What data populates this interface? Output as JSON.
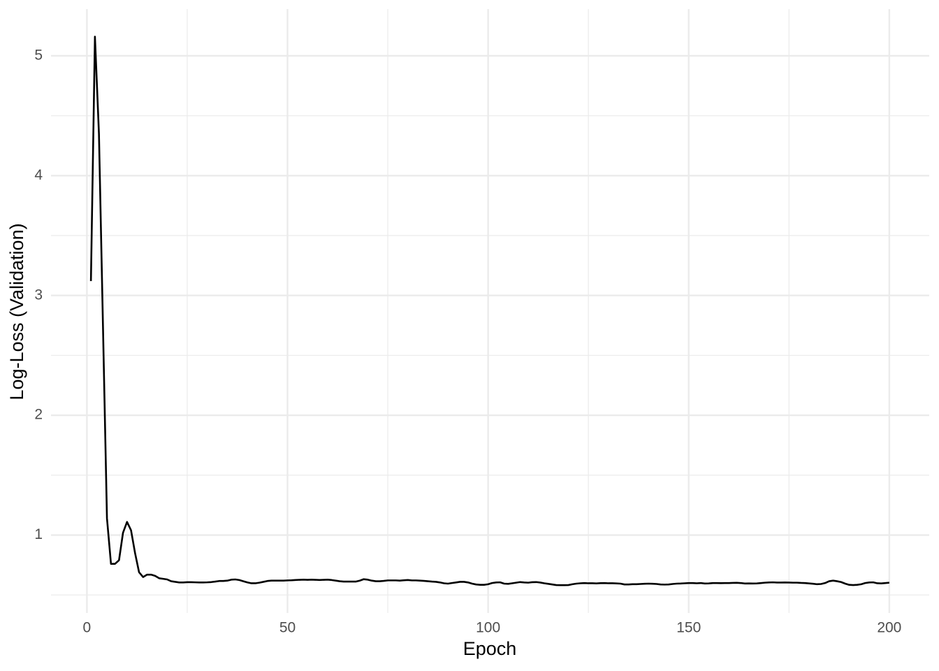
{
  "chart_data": {
    "type": "line",
    "x_label": "Epoch",
    "y_label": "Log-Loss (Validation)",
    "grid": true,
    "xlim": [
      -8.95,
      209.95
    ],
    "ylim": [
      0.35,
      5.39
    ],
    "xticks": [
      0,
      50,
      100,
      150,
      200
    ],
    "yticks": [
      1,
      2,
      3,
      4,
      5
    ],
    "series": [
      {
        "color": "#000000",
        "x": [
          1,
          2,
          3,
          4,
          5,
          6,
          7,
          8,
          9,
          10,
          11,
          12,
          13,
          14,
          15,
          16,
          17,
          18,
          19,
          20,
          21,
          22,
          23,
          24,
          25,
          26,
          27,
          28,
          29,
          30,
          31,
          32,
          33,
          34,
          35,
          36,
          37,
          38,
          39,
          40,
          41,
          42,
          43,
          44,
          45,
          46,
          47,
          48,
          49,
          50,
          51,
          52,
          53,
          54,
          55,
          56,
          57,
          58,
          59,
          60,
          61,
          62,
          63,
          64,
          65,
          66,
          67,
          68,
          69,
          70,
          71,
          72,
          73,
          74,
          75,
          76,
          77,
          78,
          79,
          80,
          81,
          82,
          83,
          84,
          85,
          86,
          87,
          88,
          89,
          90,
          91,
          92,
          93,
          94,
          95,
          96,
          97,
          98,
          99,
          100,
          101,
          102,
          103,
          104,
          105,
          106,
          107,
          108,
          109,
          110,
          111,
          112,
          113,
          114,
          115,
          116,
          117,
          118,
          119,
          120,
          121,
          122,
          123,
          124,
          125,
          126,
          127,
          128,
          129,
          130,
          131,
          132,
          133,
          134,
          135,
          136,
          137,
          138,
          139,
          140,
          141,
          142,
          143,
          144,
          145,
          146,
          147,
          148,
          149,
          150,
          151,
          152,
          153,
          154,
          155,
          156,
          157,
          158,
          159,
          160,
          161,
          162,
          163,
          164,
          165,
          166,
          167,
          168,
          169,
          170,
          171,
          172,
          173,
          174,
          175,
          176,
          177,
          178,
          179,
          180,
          181,
          182,
          183,
          184,
          185,
          186,
          187,
          188,
          189,
          190,
          191,
          192,
          193,
          194,
          195,
          196,
          197,
          198,
          199,
          200
        ],
        "values": [
          3.12,
          5.16,
          4.35,
          2.75,
          1.14,
          0.76,
          0.76,
          0.79,
          1.02,
          1.11,
          1.04,
          0.85,
          0.69,
          0.65,
          0.67,
          0.67,
          0.66,
          0.64,
          0.635,
          0.63,
          0.615,
          0.61,
          0.605,
          0.605,
          0.607,
          0.607,
          0.606,
          0.605,
          0.605,
          0.606,
          0.608,
          0.612,
          0.617,
          0.617,
          0.62,
          0.628,
          0.63,
          0.625,
          0.615,
          0.605,
          0.598,
          0.598,
          0.603,
          0.61,
          0.617,
          0.62,
          0.62,
          0.62,
          0.62,
          0.622,
          0.623,
          0.625,
          0.627,
          0.628,
          0.627,
          0.628,
          0.627,
          0.625,
          0.627,
          0.628,
          0.625,
          0.62,
          0.615,
          0.612,
          0.612,
          0.612,
          0.612,
          0.62,
          0.632,
          0.628,
          0.62,
          0.615,
          0.615,
          0.618,
          0.622,
          0.622,
          0.622,
          0.62,
          0.623,
          0.625,
          0.622,
          0.622,
          0.62,
          0.618,
          0.615,
          0.612,
          0.61,
          0.605,
          0.598,
          0.595,
          0.6,
          0.605,
          0.61,
          0.61,
          0.605,
          0.595,
          0.588,
          0.585,
          0.585,
          0.59,
          0.6,
          0.605,
          0.606,
          0.595,
          0.593,
          0.598,
          0.603,
          0.608,
          0.605,
          0.603,
          0.607,
          0.608,
          0.604,
          0.598,
          0.593,
          0.588,
          0.583,
          0.582,
          0.582,
          0.583,
          0.59,
          0.595,
          0.598,
          0.6,
          0.598,
          0.598,
          0.597,
          0.599,
          0.6,
          0.598,
          0.598,
          0.597,
          0.595,
          0.588,
          0.588,
          0.59,
          0.59,
          0.592,
          0.594,
          0.595,
          0.594,
          0.592,
          0.588,
          0.587,
          0.588,
          0.592,
          0.595,
          0.596,
          0.598,
          0.6,
          0.6,
          0.598,
          0.6,
          0.596,
          0.597,
          0.6,
          0.6,
          0.599,
          0.6,
          0.6,
          0.601,
          0.602,
          0.6,
          0.596,
          0.597,
          0.596,
          0.597,
          0.6,
          0.603,
          0.605,
          0.606,
          0.604,
          0.604,
          0.605,
          0.604,
          0.603,
          0.603,
          0.601,
          0.6,
          0.597,
          0.594,
          0.59,
          0.592,
          0.6,
          0.615,
          0.62,
          0.615,
          0.608,
          0.595,
          0.585,
          0.583,
          0.585,
          0.59,
          0.6,
          0.605,
          0.606,
          0.598,
          0.597,
          0.6,
          0.603
        ]
      }
    ]
  }
}
